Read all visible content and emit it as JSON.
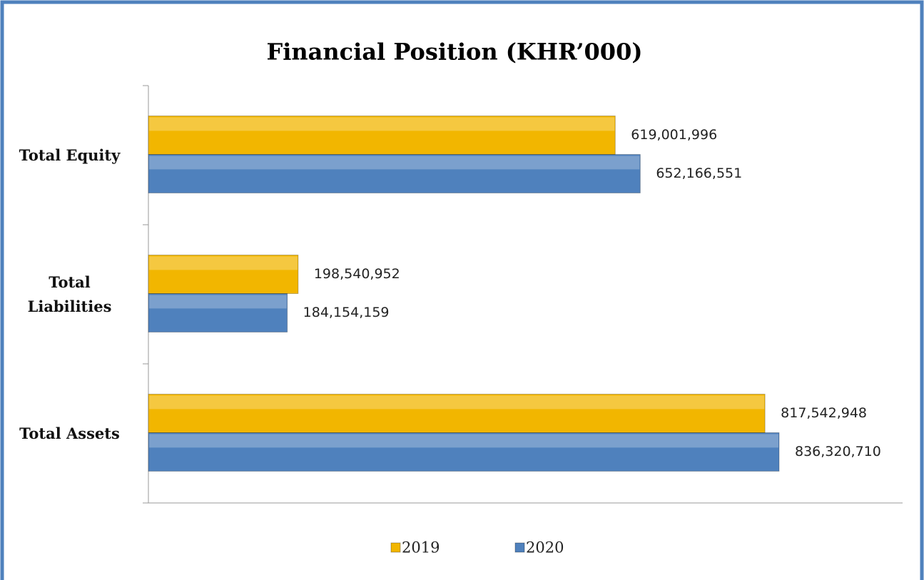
{
  "chart_data": {
    "type": "bar",
    "orientation": "horizontal",
    "title": "Financial Position  (KHR’000)",
    "categories": [
      "Total Equity",
      "Total Liabilities",
      "Total Assets"
    ],
    "series": [
      {
        "name": "2019",
        "color": "#f2b600",
        "values": [
          619001996,
          198540952,
          817542948
        ],
        "value_labels": [
          "619,001,996",
          "198,540,952",
          "817,542,948"
        ]
      },
      {
        "name": "2020",
        "color": "#4f81bd",
        "values": [
          652166551,
          184154159,
          836320710
        ],
        "value_labels": [
          "652,166,551",
          "184,154,159",
          "836,320,710"
        ]
      }
    ],
    "xlim": [
      0,
      1000000000
    ],
    "legend": "bottom"
  }
}
